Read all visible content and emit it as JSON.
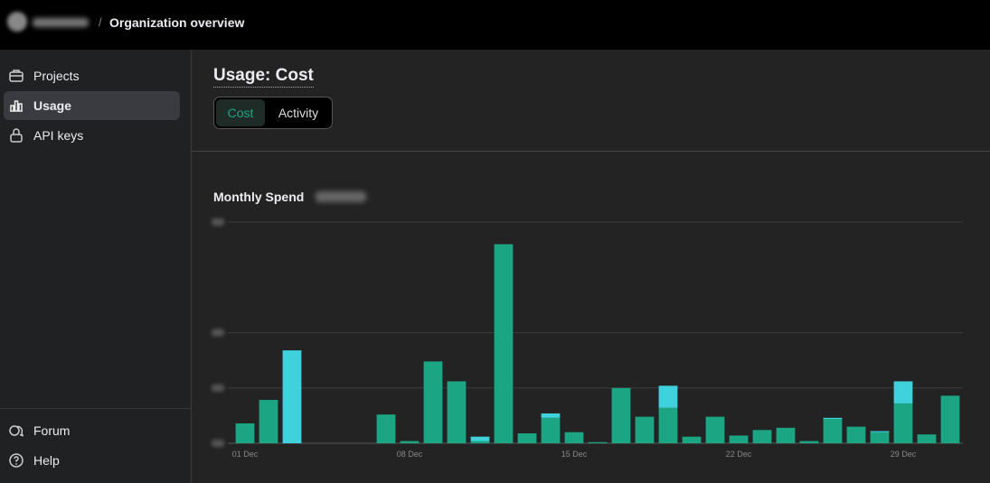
{
  "breadcrumb": {
    "page": "Organization overview"
  },
  "nav": {
    "items": [
      "Projects",
      "Usage",
      "API keys"
    ],
    "footer": [
      "Forum",
      "Help"
    ]
  },
  "header": {
    "title": "Usage: Cost",
    "tabs": [
      "Cost",
      "Activity"
    ]
  },
  "chart_data": {
    "type": "stacked-bar",
    "title": "Monthly Spend",
    "categories": [
      "01 Dec",
      null,
      null,
      null,
      null,
      null,
      null,
      "08 Dec",
      null,
      null,
      null,
      null,
      null,
      null,
      "15 Dec",
      null,
      null,
      null,
      null,
      null,
      null,
      "22 Dec",
      null,
      null,
      null,
      null,
      null,
      null,
      "29 Dec",
      null,
      null
    ],
    "series": [
      {
        "color": "#1ba582",
        "values": [
          0.09,
          0.196,
          0,
          0,
          0,
          0,
          0.13,
          0.01,
          0.37,
          0.28,
          0.01,
          0.9,
          0.045,
          0.115,
          0.05,
          0.005,
          0.25,
          0.12,
          0.16,
          0.03,
          0.12,
          0.035,
          0.06,
          0.07,
          0.01,
          0.11,
          0.075,
          0.05,
          0.18,
          0.04,
          0.215
        ]
      },
      {
        "color": "#3fd2dc",
        "values": [
          0,
          0,
          0.42,
          0,
          0,
          0,
          0,
          0,
          0,
          0,
          0.02,
          0,
          0,
          0.02,
          0,
          0,
          0,
          0,
          0.1,
          0,
          0,
          0,
          0,
          0,
          0,
          0.005,
          0,
          0.005,
          0.1,
          0,
          0
        ]
      }
    ],
    "ylim": [
      0,
      1
    ],
    "yticks": [
      0,
      0.25,
      0.5,
      1
    ],
    "grid": true
  }
}
